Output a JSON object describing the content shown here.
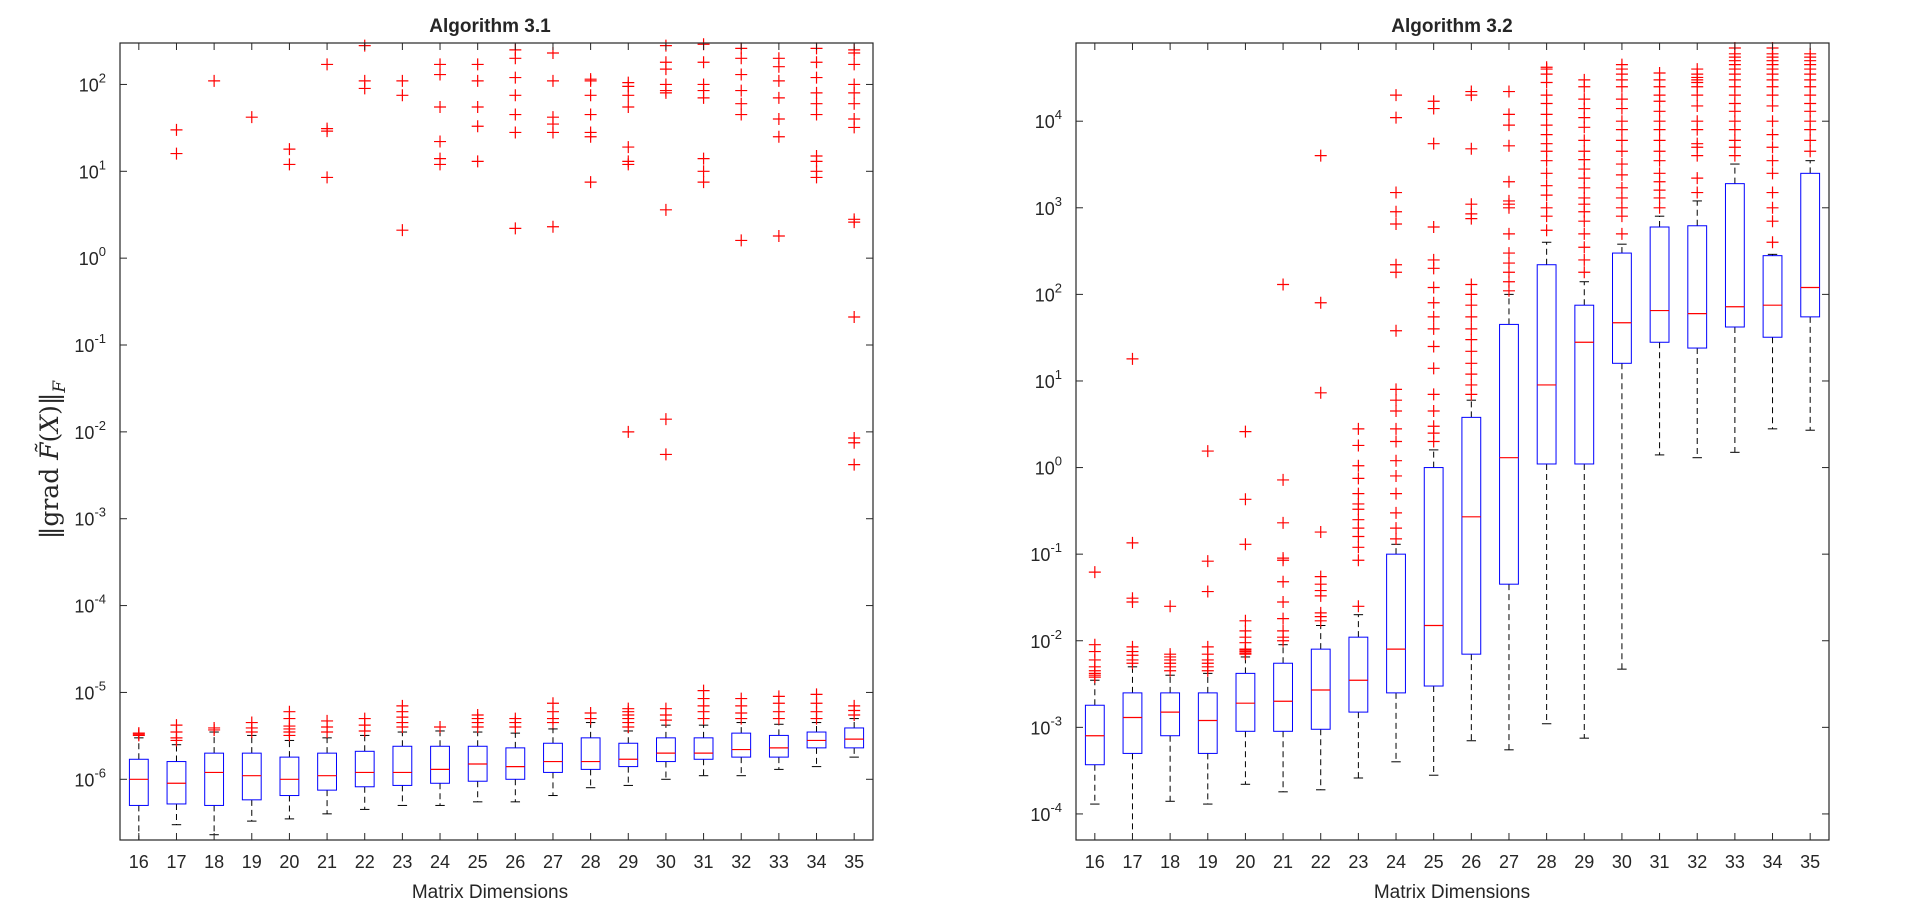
{
  "colors": {
    "box": "#0000ff",
    "median": "#ff0000",
    "outlier": "#ff0000",
    "whisker": "#000000",
    "axis": "#262626"
  },
  "chart_data": [
    {
      "type": "boxplot",
      "title": "Algorithm 3.1",
      "xlabel": "Matrix Dimensions",
      "ylabel": "||grad F̃(X)||_F",
      "yscale": "log",
      "ylim": [
        2e-07,
        300
      ],
      "yticks": [
        {
          "v": 1e-06,
          "b": "10",
          "e": "-6"
        },
        {
          "v": 1e-05,
          "b": "10",
          "e": "-5"
        },
        {
          "v": 0.0001,
          "b": "10",
          "e": "-4"
        },
        {
          "v": 0.001,
          "b": "10",
          "e": "-3"
        },
        {
          "v": 0.01,
          "b": "10",
          "e": "-2"
        },
        {
          "v": 0.1,
          "b": "10",
          "e": "-1"
        },
        {
          "v": 1,
          "b": "10",
          "e": "0"
        },
        {
          "v": 10,
          "b": "10",
          "e": "1"
        },
        {
          "v": 100,
          "b": "10",
          "e": "2"
        }
      ],
      "categories": [
        "16",
        "17",
        "18",
        "19",
        "20",
        "21",
        "22",
        "23",
        "24",
        "25",
        "26",
        "27",
        "28",
        "29",
        "30",
        "31",
        "32",
        "33",
        "34",
        "35"
      ],
      "boxes": [
        {
          "whislo": 2e-07,
          "q1": 5e-07,
          "med": 1e-06,
          "q3": 1.7e-06,
          "whishi": 3e-06,
          "fliers": [
            3.2e-06,
            3.3e-06,
            3.4e-06
          ]
        },
        {
          "whislo": 3e-07,
          "q1": 5.2e-07,
          "med": 9e-07,
          "q3": 1.6e-06,
          "whishi": 2.5e-06,
          "fliers": [
            2.8e-06,
            3e-06,
            3.5e-06,
            4.2e-06,
            16,
            30
          ]
        },
        {
          "whislo": 2.3e-07,
          "q1": 5e-07,
          "med": 1.2e-06,
          "q3": 2e-06,
          "whishi": 3.5e-06,
          "fliers": [
            3.7e-06,
            3.9e-06,
            110
          ]
        },
        {
          "whislo": 3.3e-07,
          "q1": 5.8e-07,
          "med": 1.1e-06,
          "q3": 2e-06,
          "whishi": 3.2e-06,
          "fliers": [
            3.5e-06,
            3.9e-06,
            4.5e-06,
            42
          ]
        },
        {
          "whislo": 3.5e-07,
          "q1": 6.5e-07,
          "med": 1e-06,
          "q3": 1.8e-06,
          "whishi": 2.8e-06,
          "fliers": [
            3.2e-06,
            3.5e-06,
            3.8e-06,
            4.1e-06,
            5e-06,
            6e-06,
            12,
            18
          ]
        },
        {
          "whislo": 4e-07,
          "q1": 7.5e-07,
          "med": 1.1e-06,
          "q3": 2e-06,
          "whishi": 3e-06,
          "fliers": [
            3.5e-06,
            4e-06,
            4.7e-06,
            8.5,
            29,
            31,
            170
          ]
        },
        {
          "whislo": 4.5e-07,
          "q1": 8.2e-07,
          "med": 1.2e-06,
          "q3": 2.1e-06,
          "whishi": 3.2e-06,
          "fliers": [
            3.6e-06,
            4.2e-06,
            5e-06,
            90,
            110,
            280
          ]
        },
        {
          "whislo": 5e-07,
          "q1": 8.5e-07,
          "med": 1.2e-06,
          "q3": 2.4e-06,
          "whishi": 3.5e-06,
          "fliers": [
            4e-06,
            4.5e-06,
            5.2e-06,
            6e-06,
            7e-06,
            2.1,
            75,
            110
          ]
        },
        {
          "whislo": 5e-07,
          "q1": 9e-07,
          "med": 1.3e-06,
          "q3": 2.4e-06,
          "whishi": 3.6e-06,
          "fliers": [
            4e-06,
            12,
            14,
            22,
            55,
            130,
            170
          ]
        },
        {
          "whislo": 5.5e-07,
          "q1": 9.5e-07,
          "med": 1.5e-06,
          "q3": 2.4e-06,
          "whishi": 3.5e-06,
          "fliers": [
            4e-06,
            4.5e-06,
            5e-06,
            5.5e-06,
            13,
            33,
            55,
            110,
            170
          ]
        },
        {
          "whislo": 5.5e-07,
          "q1": 1e-06,
          "med": 1.4e-06,
          "q3": 2.3e-06,
          "whishi": 3.4e-06,
          "fliers": [
            4e-06,
            4.5e-06,
            5e-06,
            2.2,
            28,
            45,
            75,
            120,
            200,
            250
          ]
        },
        {
          "whislo": 6.5e-07,
          "q1": 1.2e-06,
          "med": 1.6e-06,
          "q3": 2.6e-06,
          "whishi": 3.8e-06,
          "fliers": [
            4.5e-06,
            5e-06,
            6e-06,
            7.5e-06,
            2.3,
            28,
            35,
            42,
            110,
            230
          ]
        },
        {
          "whislo": 8e-07,
          "q1": 1.3e-06,
          "med": 1.6e-06,
          "q3": 3e-06,
          "whishi": 4.5e-06,
          "fliers": [
            5e-06,
            5.8e-06,
            7.5,
            25,
            28,
            45,
            75,
            110,
            115
          ]
        },
        {
          "whislo": 8.5e-07,
          "q1": 1.4e-06,
          "med": 1.7e-06,
          "q3": 2.6e-06,
          "whishi": 3.6e-06,
          "fliers": [
            4e-06,
            4.5e-06,
            5e-06,
            5.5e-06,
            6e-06,
            6.5e-06,
            0.01,
            12,
            13,
            19,
            55,
            75,
            95,
            105
          ]
        },
        {
          "whislo": 1e-06,
          "q1": 1.6e-06,
          "med": 2e-06,
          "q3": 3e-06,
          "whishi": 4.2e-06,
          "fliers": [
            4.8e-06,
            5.5e-06,
            6.5e-06,
            0.0055,
            0.014,
            3.6,
            80,
            85,
            100,
            150,
            180,
            280
          ]
        },
        {
          "whislo": 1.1e-06,
          "q1": 1.7e-06,
          "med": 2e-06,
          "q3": 3e-06,
          "whishi": 4.2e-06,
          "fliers": [
            5e-06,
            6e-06,
            7e-06,
            8.5e-06,
            1.05e-05,
            7.5,
            10,
            14,
            70,
            85,
            100,
            180,
            290
          ]
        },
        {
          "whislo": 1.1e-06,
          "q1": 1.8e-06,
          "med": 2.2e-06,
          "q3": 3.4e-06,
          "whishi": 4.5e-06,
          "fliers": [
            5e-06,
            5.8e-06,
            7e-06,
            8.5e-06,
            1.6,
            45,
            60,
            85,
            130,
            200,
            260
          ]
        },
        {
          "whislo": 1.3e-06,
          "q1": 1.8e-06,
          "med": 2.3e-06,
          "q3": 3.2e-06,
          "whishi": 4.3e-06,
          "fliers": [
            5e-06,
            6e-06,
            7.5e-06,
            9e-06,
            1.8,
            25,
            40,
            70,
            110,
            160,
            200
          ]
        },
        {
          "whislo": 1.4e-06,
          "q1": 2.3e-06,
          "med": 2.8e-06,
          "q3": 3.5e-06,
          "whishi": 4.5e-06,
          "fliers": [
            5e-06,
            6e-06,
            7.5e-06,
            9.5e-06,
            8.5,
            10,
            13,
            15,
            45,
            60,
            80,
            120,
            180,
            260
          ]
        },
        {
          "whislo": 1.8e-06,
          "q1": 2.3e-06,
          "med": 2.9e-06,
          "q3": 3.9e-06,
          "whishi": 5e-06,
          "fliers": [
            5.5e-06,
            6.2e-06,
            7e-06,
            0.0042,
            0.0075,
            0.0085,
            0.21,
            2.6,
            2.8,
            32,
            40,
            60,
            80,
            100,
            170,
            230,
            250
          ]
        }
      ]
    },
    {
      "type": "boxplot",
      "title": "Algorithm 3.2",
      "xlabel": "Matrix Dimensions",
      "ylabel": "",
      "yscale": "log",
      "ylim": [
        5e-05,
        80000
      ],
      "yticks": [
        {
          "v": 0.0001,
          "b": "10",
          "e": "-4"
        },
        {
          "v": 0.001,
          "b": "10",
          "e": "-3"
        },
        {
          "v": 0.01,
          "b": "10",
          "e": "-2"
        },
        {
          "v": 0.1,
          "b": "10",
          "e": "-1"
        },
        {
          "v": 1,
          "b": "10",
          "e": "0"
        },
        {
          "v": 10,
          "b": "10",
          "e": "1"
        },
        {
          "v": 100,
          "b": "10",
          "e": "2"
        },
        {
          "v": 1000,
          "b": "10",
          "e": "3"
        },
        {
          "v": 10000,
          "b": "10",
          "e": "4"
        }
      ],
      "categories": [
        "16",
        "17",
        "18",
        "19",
        "20",
        "21",
        "22",
        "23",
        "24",
        "25",
        "26",
        "27",
        "28",
        "29",
        "30",
        "31",
        "32",
        "33",
        "34",
        "35"
      ],
      "boxes": [
        {
          "whislo": 0.00013,
          "q1": 0.00037,
          "med": 0.0008,
          "q3": 0.0018,
          "whishi": 0.0035,
          "fliers": [
            0.0038,
            0.004,
            0.0042,
            0.0045,
            0.005,
            0.006,
            0.0075,
            0.009,
            0.062
          ]
        },
        {
          "whislo": 5e-05,
          "q1": 0.0005,
          "med": 0.0013,
          "q3": 0.0025,
          "whishi": 0.005,
          "fliers": [
            0.0055,
            0.006,
            0.0068,
            0.0075,
            0.0085,
            0.028,
            0.031,
            0.135,
            18
          ]
        },
        {
          "whislo": 0.00014,
          "q1": 0.0008,
          "med": 0.0015,
          "q3": 0.0025,
          "whishi": 0.004,
          "fliers": [
            0.0045,
            0.005,
            0.0055,
            0.006,
            0.0065,
            0.007,
            0.025
          ]
        },
        {
          "whislo": 0.00013,
          "q1": 0.0005,
          "med": 0.0012,
          "q3": 0.0025,
          "whishi": 0.0042,
          "fliers": [
            0.0045,
            0.005,
            0.0055,
            0.006,
            0.007,
            0.0085,
            0.037,
            0.083,
            1.55
          ]
        },
        {
          "whislo": 0.00022,
          "q1": 0.0009,
          "med": 0.0019,
          "q3": 0.0042,
          "whishi": 0.0065,
          "fliers": [
            0.007,
            0.0072,
            0.0075,
            0.0078,
            0.008,
            0.0095,
            0.011,
            0.013,
            0.017,
            0.13,
            0.43,
            2.6
          ]
        },
        {
          "whislo": 0.00018,
          "q1": 0.0009,
          "med": 0.002,
          "q3": 0.0055,
          "whishi": 0.009,
          "fliers": [
            0.01,
            0.011,
            0.013,
            0.018,
            0.028,
            0.048,
            0.085,
            0.09,
            0.23,
            0.72,
            130
          ]
        },
        {
          "whislo": 0.00019,
          "q1": 0.00095,
          "med": 0.0027,
          "q3": 0.008,
          "whishi": 0.015,
          "fliers": [
            0.017,
            0.019,
            0.021,
            0.033,
            0.038,
            0.045,
            0.055,
            0.18,
            7.3,
            80,
            4000
          ]
        },
        {
          "whislo": 0.00026,
          "q1": 0.0015,
          "med": 0.0035,
          "q3": 0.011,
          "whishi": 0.02,
          "fliers": [
            0.025,
            0.085,
            0.12,
            0.16,
            0.2,
            0.25,
            0.33,
            0.38,
            0.5,
            0.75,
            1.05,
            1.8,
            2.8
          ]
        },
        {
          "whislo": 0.0004,
          "q1": 0.0025,
          "med": 0.008,
          "q3": 0.1,
          "whishi": 0.13,
          "fliers": [
            0.15,
            0.2,
            0.3,
            0.5,
            0.8,
            1.2,
            2,
            2.8,
            4.5,
            6,
            8,
            38,
            180,
            220,
            650,
            900,
            1500,
            11000,
            20000
          ]
        },
        {
          "whislo": 0.00028,
          "q1": 0.003,
          "med": 0.015,
          "q3": 1,
          "whishi": 1.6,
          "fliers": [
            2,
            2.5,
            3,
            4.5,
            7,
            14,
            25,
            40,
            55,
            80,
            120,
            200,
            250,
            600,
            5500,
            14000,
            17000
          ]
        },
        {
          "whislo": 0.0007,
          "q1": 0.007,
          "med": 0.27,
          "q3": 3.8,
          "whishi": 6,
          "fliers": [
            7,
            9,
            12,
            16,
            22,
            30,
            40,
            55,
            75,
            100,
            130,
            750,
            850,
            1100,
            4800,
            20000,
            22000
          ]
        },
        {
          "whislo": 0.00055,
          "q1": 0.045,
          "med": 1.3,
          "q3": 45,
          "whishi": 100,
          "fliers": [
            110,
            140,
            180,
            230,
            300,
            500,
            1000,
            1100,
            1200,
            2000,
            5200,
            9000,
            12000,
            22000
          ]
        },
        {
          "whislo": 0.0011,
          "q1": 1.1,
          "med": 9,
          "q3": 220,
          "whishi": 400,
          "fliers": [
            550,
            800,
            1000,
            1400,
            1800,
            2500,
            3500,
            4500,
            5500,
            7000,
            9000,
            12000,
            16000,
            20000,
            28000,
            35000,
            40000,
            42000
          ]
        },
        {
          "whislo": 0.00075,
          "q1": 1.1,
          "med": 28,
          "q3": 75,
          "whishi": 140,
          "fliers": [
            180,
            250,
            350,
            500,
            700,
            900,
            1100,
            1300,
            1700,
            2200,
            2800,
            3600,
            4500,
            6000,
            8500,
            11000,
            14000,
            18000,
            25000,
            30000
          ]
        },
        {
          "whislo": 0.0047,
          "q1": 16,
          "med": 47,
          "q3": 300,
          "whishi": 380,
          "fliers": [
            500,
            800,
            1000,
            1300,
            1700,
            2400,
            3200,
            4500,
            6000,
            8000,
            10000,
            14000,
            18000,
            25000,
            30000,
            35000,
            40000,
            45000
          ]
        },
        {
          "whislo": 1.4,
          "q1": 28,
          "med": 65,
          "q3": 600,
          "whishi": 800,
          "fliers": [
            1000,
            1300,
            1600,
            2000,
            2500,
            3500,
            4500,
            6000,
            8000,
            10000,
            13000,
            17000,
            20000,
            25000,
            30000,
            36000
          ]
        },
        {
          "whislo": 1.3,
          "q1": 24,
          "med": 60,
          "q3": 620,
          "whishi": 1200,
          "fliers": [
            1500,
            2200,
            4000,
            5000,
            5500,
            8000,
            10000,
            15000,
            20000,
            25000,
            28000,
            30000,
            32000,
            35000,
            40000
          ]
        },
        {
          "whislo": 1.5,
          "q1": 42,
          "med": 72,
          "q3": 1900,
          "whishi": 3200,
          "fliers": [
            4000,
            5000,
            6000,
            8000,
            10000,
            13000,
            16000,
            20000,
            25000,
            30000,
            35000,
            40000,
            45000,
            50000,
            55000,
            60000,
            70000
          ]
        },
        {
          "whislo": 2.8,
          "q1": 32,
          "med": 75,
          "q3": 280,
          "whishi": 290,
          "fliers": [
            400,
            700,
            1000,
            1500,
            2500,
            3500,
            5000,
            7000,
            10000,
            15000,
            20000,
            25000,
            30000,
            35000,
            40000,
            45000,
            50000,
            55000,
            60000,
            70000
          ]
        },
        {
          "whislo": 2.7,
          "q1": 55,
          "med": 120,
          "q3": 2500,
          "whishi": 3500,
          "fliers": [
            4500,
            6000,
            8000,
            10000,
            13000,
            16000,
            20000,
            25000,
            30000,
            35000,
            40000,
            45000,
            50000,
            55000,
            60000
          ]
        }
      ]
    }
  ]
}
